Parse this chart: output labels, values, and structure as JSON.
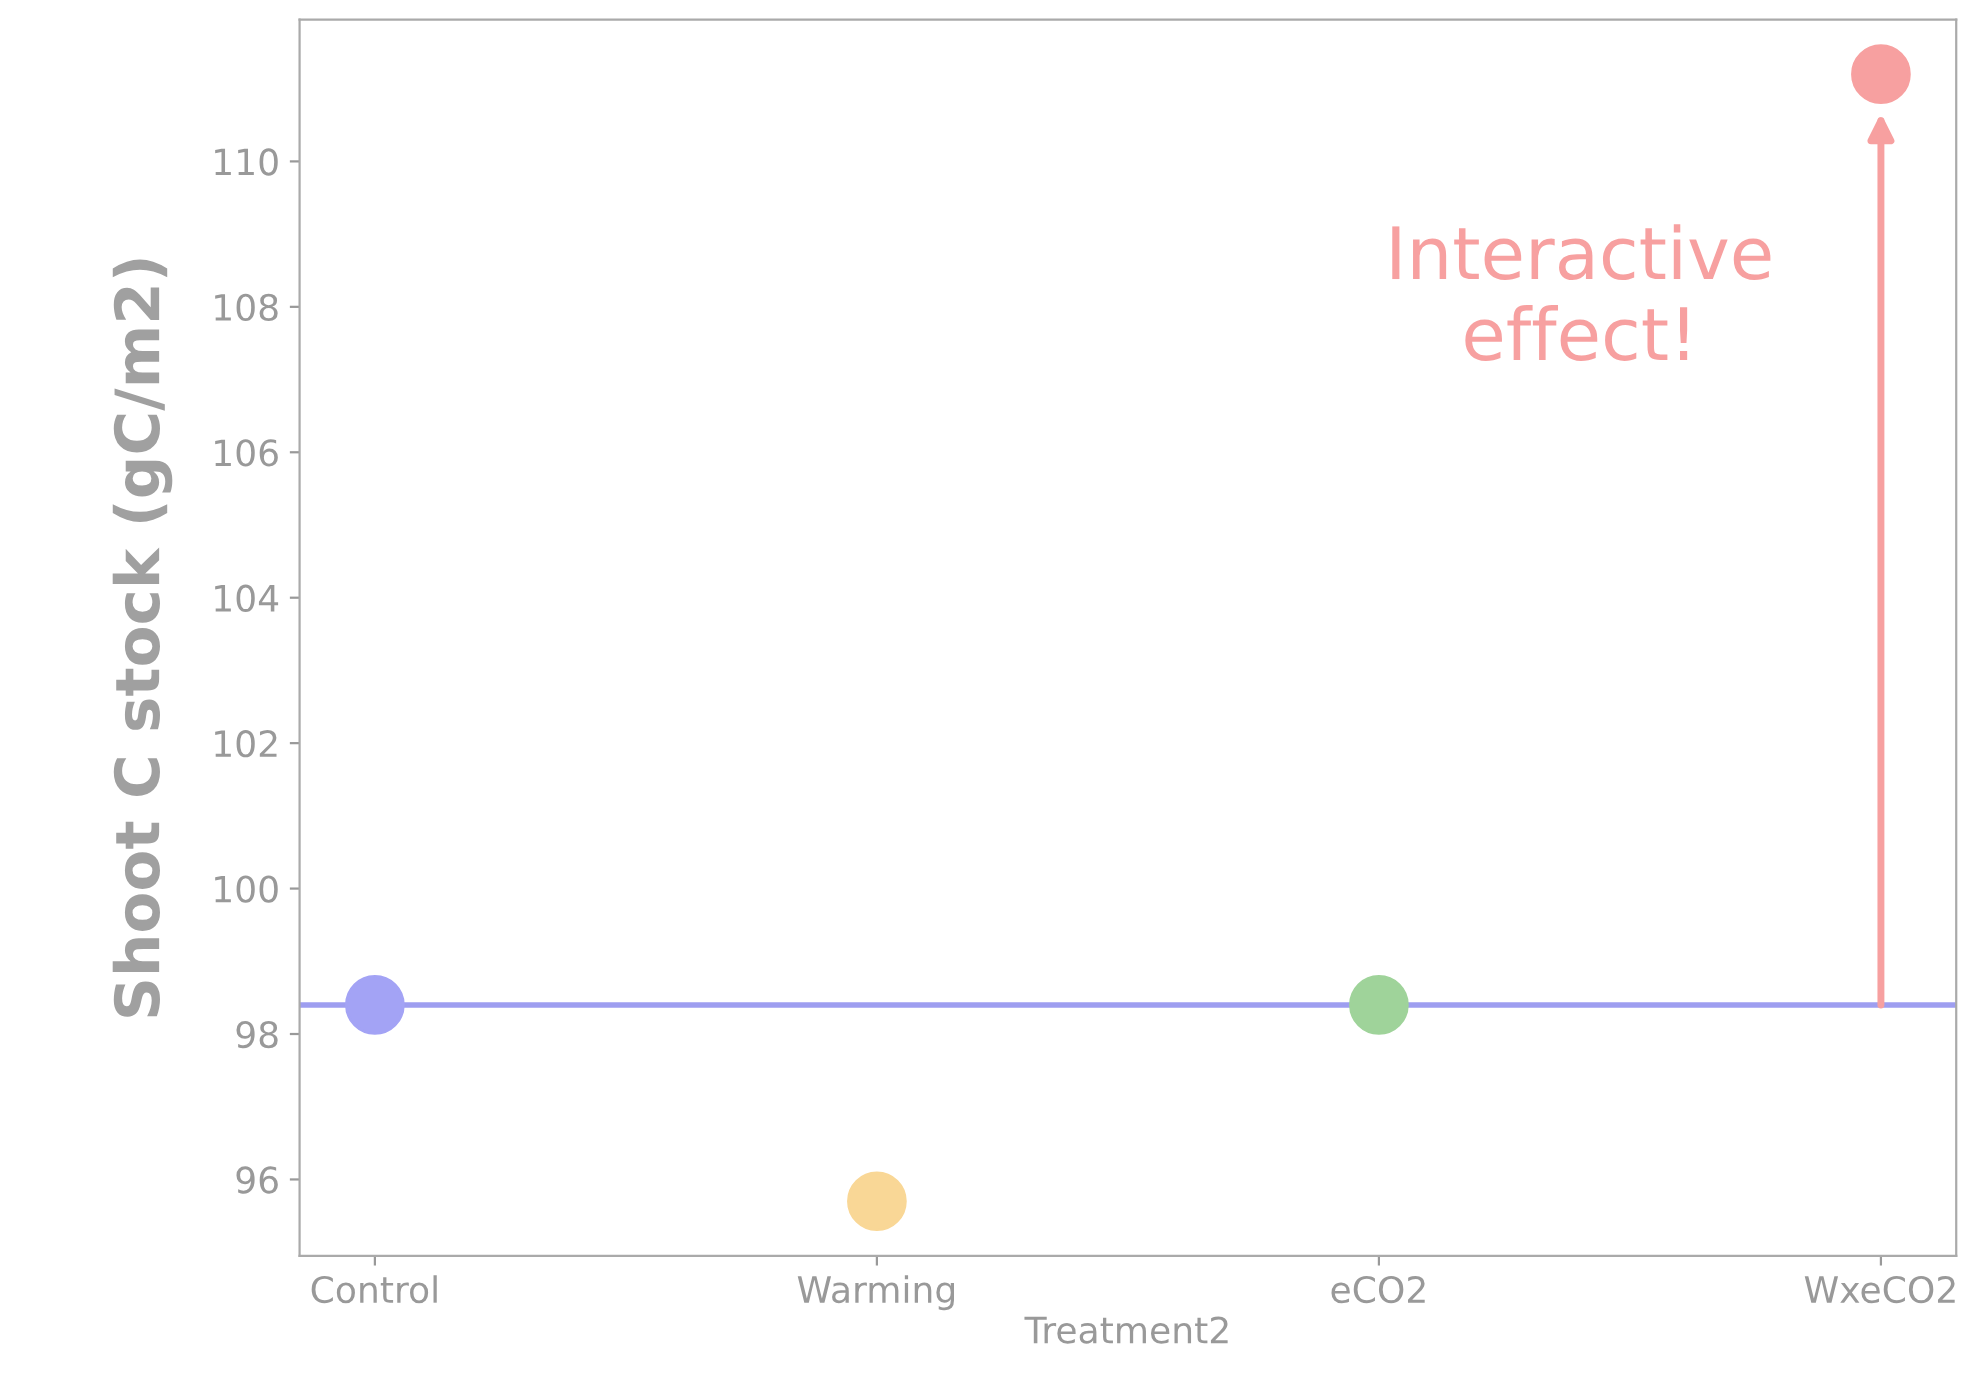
{
  "chart_data": {
    "type": "scatter",
    "xlabel": "Treatment2",
    "ylabel": "Shoot C stock (gC/m2)",
    "categories": [
      "Control",
      "Warming",
      "eCO2",
      "WxeCO2"
    ],
    "values": [
      98.4,
      95.7,
      98.4,
      111.2
    ],
    "colors": [
      "#a3a3f5",
      "#f9d796",
      "#9fd39a",
      "#f7a0a0"
    ],
    "ylim": [
      94.95,
      111.95
    ],
    "yticks": [
      96,
      98,
      100,
      102,
      104,
      106,
      108,
      110
    ],
    "ref_lines": [
      {
        "axis": "y",
        "value": 98.4,
        "color": "#9e9ef0"
      }
    ],
    "annotations": [
      {
        "text": "Interactive\neffect!",
        "x": "WxeCO2",
        "y": 111.2
      }
    ],
    "grid": false,
    "marker": "circle"
  }
}
